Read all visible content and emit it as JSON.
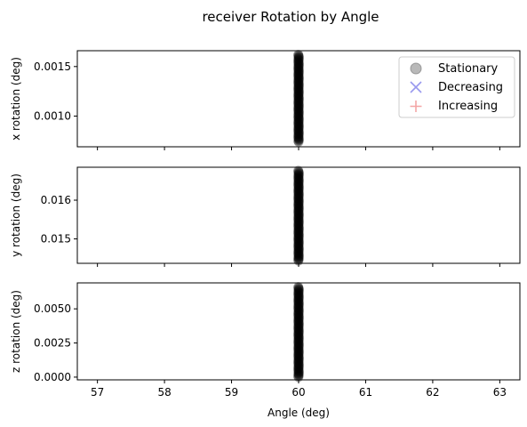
{
  "title": "receiver Rotation by Angle",
  "legend": {
    "placement": "top-right",
    "entries": [
      {
        "label": "Stationary",
        "marker": "circle",
        "color": "#808080"
      },
      {
        "label": "Decreasing",
        "marker": "x",
        "color": "#9999ee"
      },
      {
        "label": "Increasing",
        "marker": "plus",
        "color": "#f4a6a6"
      }
    ]
  },
  "chart_data": [
    {
      "type": "scatter",
      "xlabel": "",
      "ylabel": "x rotation (deg)",
      "xlim": [
        56.7,
        63.3
      ],
      "ylim": [
        0.00069,
        0.00166
      ],
      "xticks": [
        57,
        58,
        59,
        60,
        61,
        62,
        63
      ],
      "yticks": [
        0.001,
        0.0015
      ],
      "ytick_labels": [
        "0.0010",
        "0.0015"
      ],
      "grid": false,
      "series": [
        {
          "name": "Stationary",
          "x": 60,
          "y_range": [
            0.00074,
            0.00162
          ],
          "color": "#000000"
        }
      ]
    },
    {
      "type": "scatter",
      "xlabel": "",
      "ylabel": "y rotation (deg)",
      "xlim": [
        56.7,
        63.3
      ],
      "ylim": [
        0.01437,
        0.01685
      ],
      "xticks": [
        57,
        58,
        59,
        60,
        61,
        62,
        63
      ],
      "yticks": [
        0.015,
        0.016
      ],
      "ytick_labels": [
        "0.015",
        "0.016"
      ],
      "grid": false,
      "series": [
        {
          "name": "Stationary",
          "x": 60,
          "y_range": [
            0.01443,
            0.01676
          ],
          "color": "#000000"
        }
      ]
    },
    {
      "type": "scatter",
      "xlabel": "Angle (deg)",
      "ylabel": "z rotation (deg)",
      "xlim": [
        56.7,
        63.3
      ],
      "ylim": [
        -0.0002,
        0.0069
      ],
      "xticks": [
        57,
        58,
        59,
        60,
        61,
        62,
        63
      ],
      "xtick_labels": [
        "57",
        "58",
        "59",
        "60",
        "61",
        "62",
        "63"
      ],
      "yticks": [
        0.0,
        0.0025,
        0.005
      ],
      "ytick_labels": [
        "0.0000",
        "0.0025",
        "0.0050"
      ],
      "grid": false,
      "series": [
        {
          "name": "Stationary",
          "x": 60,
          "y_range": [
            0.0,
            0.0066
          ],
          "color": "#000000"
        }
      ]
    }
  ]
}
